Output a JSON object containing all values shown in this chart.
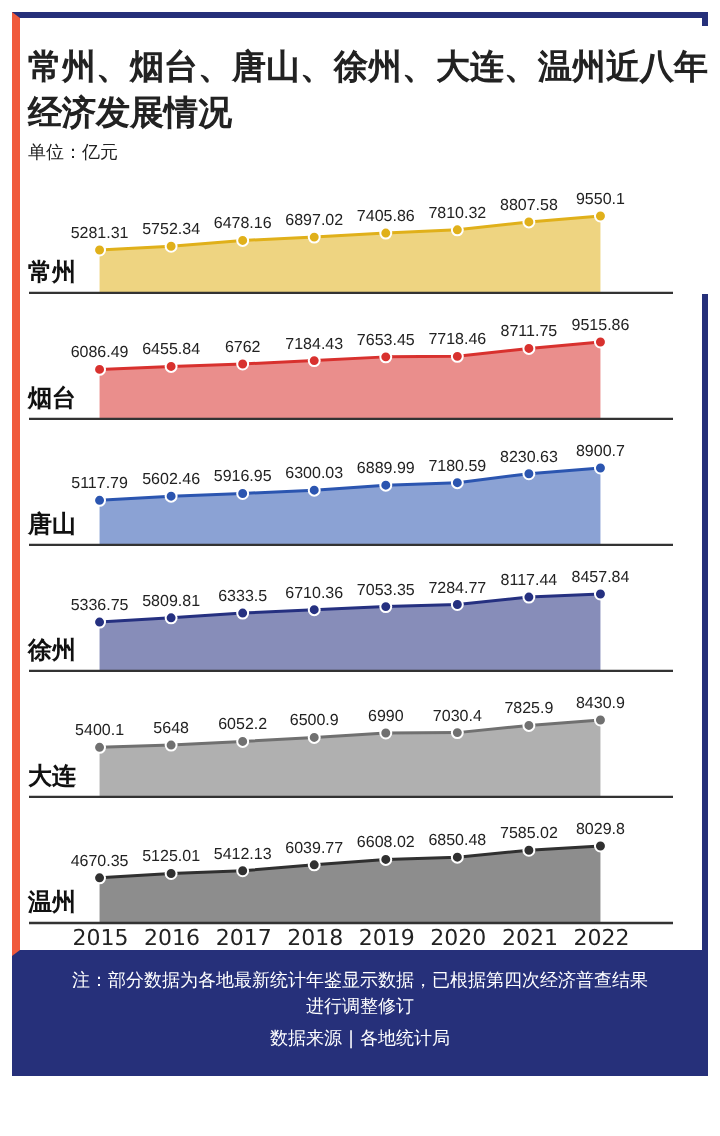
{
  "chart_data": [
    {
      "type": "area",
      "title": "常州、烟台、唐山、徐州、大连、温州近八年经济发展情况",
      "subtitle": "单位：亿元",
      "categories": [
        "2015",
        "2016",
        "2017",
        "2018",
        "2019",
        "2020",
        "2021",
        "2022"
      ],
      "series": [
        {
          "name": "常州",
          "color": "#e0b01a",
          "values": [
            5281.31,
            5752.34,
            6478.16,
            6897.02,
            7405.86,
            7810.32,
            8807.58,
            9550.1
          ]
        }
      ],
      "data_labels": true,
      "marker": "circle",
      "tick_labels": false
    },
    {
      "type": "area",
      "categories": [
        "2015",
        "2016",
        "2017",
        "2018",
        "2019",
        "2020",
        "2021",
        "2022"
      ],
      "series": [
        {
          "name": "烟台",
          "color": "#d8312e",
          "values": [
            6086.49,
            6455.84,
            6762,
            7184.43,
            7653.45,
            7718.46,
            8711.75,
            9515.86
          ]
        }
      ],
      "data_labels": true,
      "marker": "circle",
      "tick_labels": false
    },
    {
      "type": "area",
      "categories": [
        "2015",
        "2016",
        "2017",
        "2018",
        "2019",
        "2020",
        "2021",
        "2022"
      ],
      "series": [
        {
          "name": "唐山",
          "color": "#2b55b0",
          "values": [
            5117.79,
            5602.46,
            5916.95,
            6300.03,
            6889.99,
            7180.59,
            8230.63,
            8900.7
          ]
        }
      ],
      "data_labels": true,
      "marker": "circle",
      "tick_labels": false
    },
    {
      "type": "area",
      "categories": [
        "2015",
        "2016",
        "2017",
        "2018",
        "2019",
        "2020",
        "2021",
        "2022"
      ],
      "series": [
        {
          "name": "徐州",
          "color": "#253080",
          "values": [
            5336.75,
            5809.81,
            6333.5,
            6710.36,
            7053.35,
            7284.77,
            8117.44,
            8457.84
          ]
        }
      ],
      "data_labels": true,
      "marker": "circle",
      "tick_labels": false
    },
    {
      "type": "area",
      "categories": [
        "2015",
        "2016",
        "2017",
        "2018",
        "2019",
        "2020",
        "2021",
        "2022"
      ],
      "series": [
        {
          "name": "大连",
          "color": "#707070",
          "values": [
            5400.1,
            5648,
            6052.2,
            6500.9,
            6990,
            7030.4,
            7825.9,
            8430.9
          ]
        }
      ],
      "data_labels": true,
      "marker": "circle",
      "tick_labels": false
    },
    {
      "type": "area",
      "categories": [
        "2015",
        "2016",
        "2017",
        "2018",
        "2019",
        "2020",
        "2021",
        "2022"
      ],
      "series": [
        {
          "name": "温州",
          "color": "#303030",
          "values": [
            4670.35,
            5125.01,
            5412.13,
            6039.77,
            6608.02,
            6850.48,
            7585.02,
            8029.8
          ]
        }
      ],
      "data_labels": true,
      "marker": "circle",
      "tick_labels": "x",
      "annotations": [
        "注：部分数据为各地最新统计年鉴显示数据，已根据第四次经济普查结果进行调整修订",
        "数据来源 | 各地统计局"
      ]
    }
  ]
}
